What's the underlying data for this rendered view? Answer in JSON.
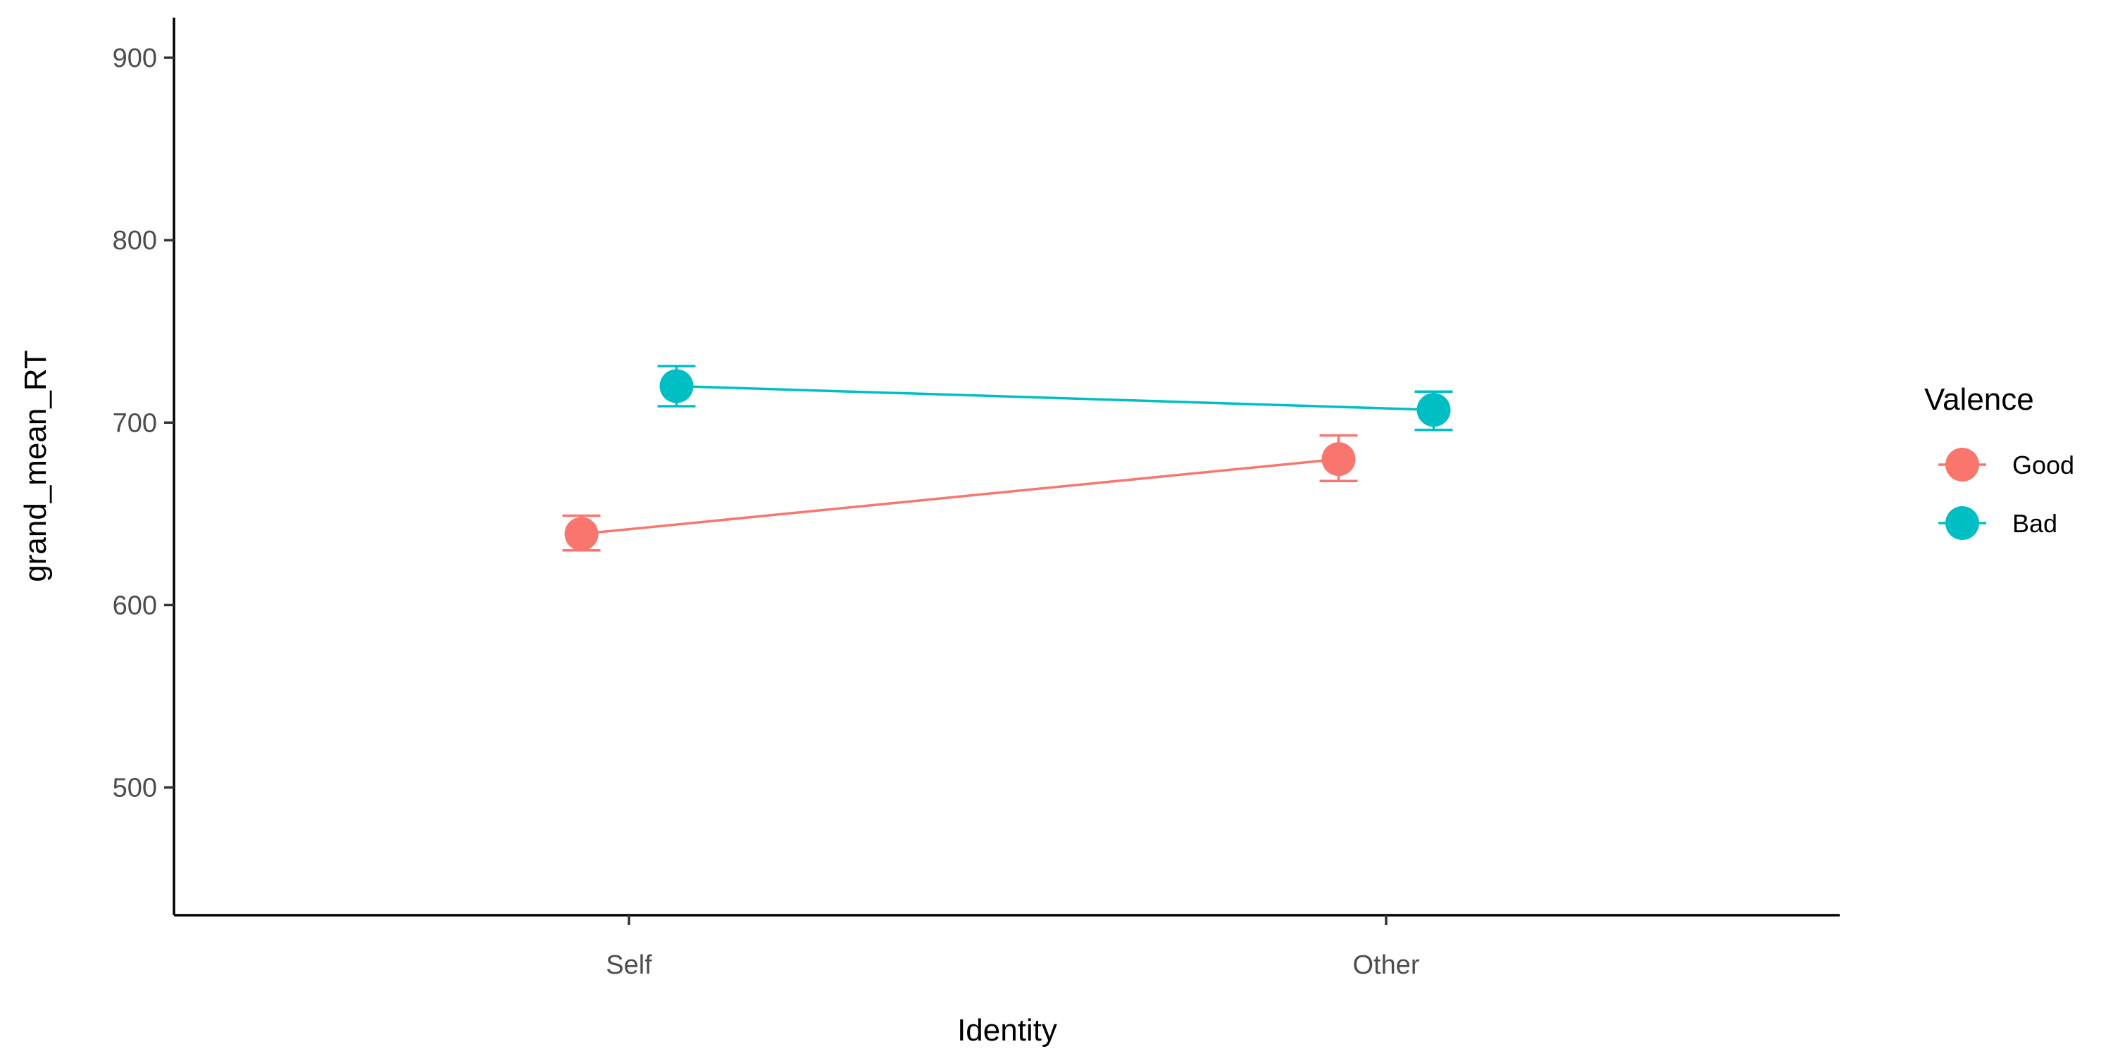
{
  "chart_data": {
    "type": "line",
    "xlabel": "Identity",
    "ylabel": "grand_mean_RT",
    "categories": [
      "Self",
      "Other"
    ],
    "ylim": [
      430,
      922
    ],
    "yticks": [
      500,
      600,
      700,
      800,
      900
    ],
    "grid": false,
    "legend": {
      "title": "Valence",
      "position": "right"
    },
    "series": [
      {
        "name": "Good",
        "color": "#F8766D",
        "values": [
          639,
          680
        ],
        "error_low": [
          630,
          668
        ],
        "error_high": [
          649,
          693
        ]
      },
      {
        "name": "Bad",
        "color": "#00BFC4",
        "values": [
          720,
          707
        ],
        "error_low": [
          709,
          696
        ],
        "error_high": [
          731,
          717
        ]
      }
    ]
  }
}
